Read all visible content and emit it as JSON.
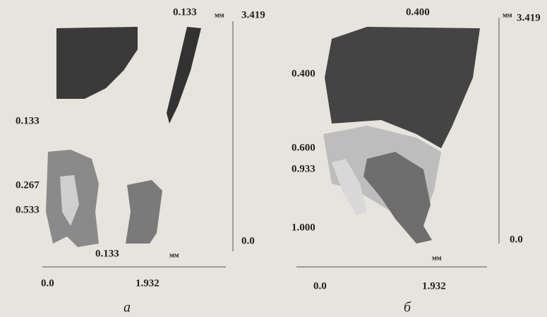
{
  "panels": [
    {
      "caption": "а",
      "unit_top": "мм",
      "unit_bottom": "мм",
      "y_max": "3.419",
      "y_min": "0.0",
      "x_min": "0.0",
      "x_max": "1.932",
      "contour_labels": [
        "0.133",
        "0.133",
        "0.267",
        "0.533",
        "0.133"
      ]
    },
    {
      "caption": "б",
      "unit_top": "мм",
      "unit_bottom": "мм",
      "y_max": "3.419",
      "y_min": "0.0",
      "x_min": "0.0",
      "x_max": "1.932",
      "contour_labels": [
        "0.400",
        "0.400",
        "0.600",
        "0.933",
        "1.000"
      ]
    }
  ]
}
